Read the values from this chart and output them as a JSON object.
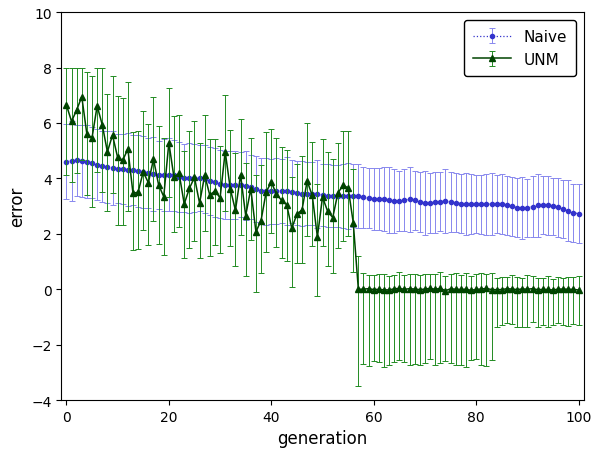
{
  "xlabel": "generation",
  "ylabel": "error",
  "xlim": [
    -1,
    101
  ],
  "ylim": [
    -4,
    10
  ],
  "naive_color": "#3333cc",
  "unm_color": "#004400",
  "unm_err_color": "#228B22",
  "naive_err_color": "#8888ee",
  "legend_loc": "upper right",
  "naive_mean_start": 4.7,
  "naive_mean_end": 2.5,
  "unm_mean_start": 6.3,
  "unm_drop_gen": 57,
  "n_points": 101
}
